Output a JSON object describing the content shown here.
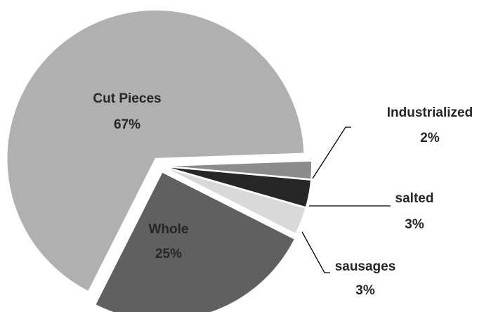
{
  "chart_data": {
    "type": "pie",
    "categories": [
      "Industrialized",
      "salted",
      "sausages",
      "Whole",
      "Cut Pieces"
    ],
    "values": [
      2,
      3,
      3,
      25,
      67
    ],
    "value_labels": [
      "2%",
      "3%",
      "3%",
      "25%",
      "67%"
    ],
    "colors": [
      "#8c8c8c",
      "#262626",
      "#d9d9d9",
      "#606060",
      "#b0b0b0"
    ]
  }
}
